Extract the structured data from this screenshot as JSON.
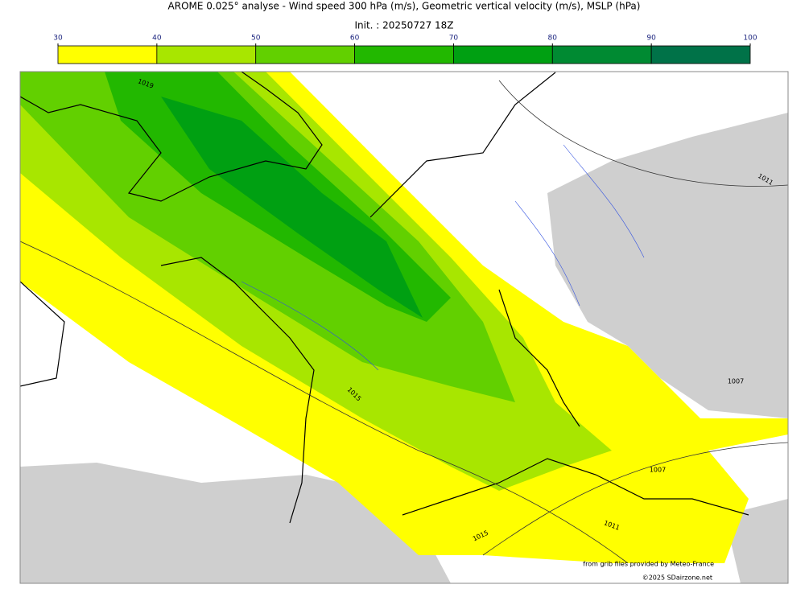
{
  "header": {
    "title": "AROME 0.025° analyse - Wind speed 300 hPa (m/s), Geometric vertical velocity (m/s), MSLP (hPa)",
    "init": "Init. : 20250727 18Z"
  },
  "colorbar": {
    "ticks": [
      30,
      40,
      50,
      60,
      70,
      80,
      90,
      100
    ],
    "colors": [
      "#ffff00",
      "#a8e600",
      "#62d000",
      "#22b800",
      "#00a012",
      "#008a32",
      "#007248"
    ]
  },
  "contour_labels": [
    "1019",
    "1015",
    "1015",
    "1011",
    "1007",
    "1007",
    "1011"
  ],
  "credits": {
    "source": "from grib files provided by Meteo-France",
    "copyright": "©2025 SDairzone.net"
  }
}
